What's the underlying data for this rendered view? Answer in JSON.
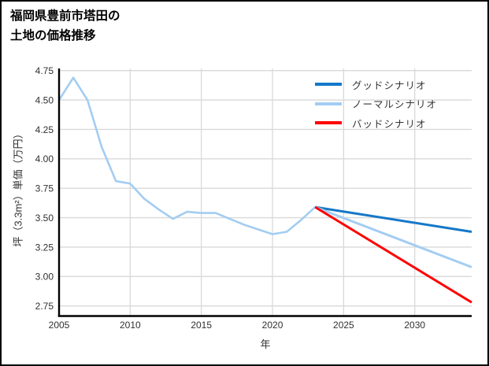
{
  "title": {
    "line1": "福岡県豊前市塔田の",
    "line2": "土地の価格推移"
  },
  "colors": {
    "background": "#ffffff",
    "border": "#000000",
    "grid": "#d9d9d9",
    "axis": "#000000",
    "tick_text": "#303030",
    "good_blue": "#1577c8",
    "normal_lightblue": "#a3cdf2",
    "bad_red": "#fe0000"
  },
  "chart_data": {
    "type": "line",
    "title": "福岡県豊前市塔田の土地の価格推移",
    "xlabel": "年",
    "ylabel": "坪（3.3m²）単価（万円）",
    "xlim": [
      2005,
      2034
    ],
    "ylim": [
      2.66,
      4.81
    ],
    "xticks": [
      2005,
      2010,
      2015,
      2020,
      2025,
      2030
    ],
    "yticks": [
      "2.75",
      "3.00",
      "3.25",
      "3.50",
      "3.75",
      "4.00",
      "4.25",
      "4.50",
      "4.75"
    ],
    "grid": true,
    "legend_position": "top-right-inside",
    "series": [
      {
        "id": "historical",
        "label": "",
        "color": "#a3cdf2",
        "width": 2.6,
        "x": [
          2005,
          2006,
          2007,
          2008,
          2009,
          2010,
          2011,
          2012,
          2013,
          2014,
          2015,
          2016,
          2017,
          2018,
          2019,
          2020,
          2021,
          2022,
          2023
        ],
        "y": [
          4.5,
          4.69,
          4.5,
          4.1,
          3.81,
          3.79,
          3.66,
          3.57,
          3.49,
          3.55,
          3.54,
          3.54,
          3.49,
          3.44,
          3.4,
          3.36,
          3.38,
          3.48,
          3.59
        ]
      },
      {
        "id": "good-scenario",
        "label": "グッドシナリオ",
        "color": "#1577c8",
        "width": 3,
        "x": [
          2023,
          2034
        ],
        "y": [
          3.59,
          3.38
        ]
      },
      {
        "id": "normal-scenario",
        "label": "ノーマルシナリオ",
        "color": "#a3cdf2",
        "width": 3,
        "x": [
          2023,
          2034
        ],
        "y": [
          3.59,
          3.08
        ]
      },
      {
        "id": "bad-scenario",
        "label": "バッドシナリオ",
        "color": "#fe0000",
        "width": 3,
        "x": [
          2023,
          2034
        ],
        "y": [
          3.59,
          2.78
        ]
      }
    ],
    "legend": [
      {
        "id": "good-scenario",
        "label": "グッドシナリオ",
        "color": "#1577c8"
      },
      {
        "id": "normal-scenario",
        "label": "ノーマルシナリオ",
        "color": "#a3cdf2"
      },
      {
        "id": "bad-scenario",
        "label": "バッドシナリオ",
        "color": "#fe0000"
      }
    ]
  }
}
